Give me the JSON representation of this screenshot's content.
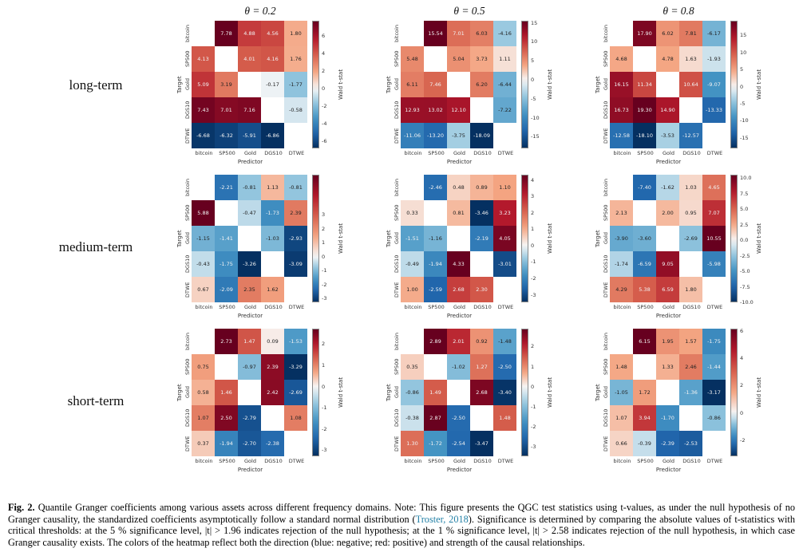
{
  "figure": {
    "row_labels": [
      "long-term",
      "medium-term",
      "short-term"
    ],
    "col_titles": [
      "θ = 0.2",
      "θ = 0.5",
      "θ = 0.8"
    ],
    "assets": [
      "bitcoin",
      "SP500",
      "Gold",
      "DGS10",
      "DTWE"
    ],
    "xlabel": "Predictor",
    "ylabel": "Target",
    "cbar_label": "Wald t-stat",
    "colors": {
      "positive_extreme": "#67001f",
      "negative_extreme": "#053061",
      "center": "#f7f7f7"
    }
  },
  "chart_data": [
    {
      "type": "heatmap",
      "term": "long-term",
      "theta": "θ = 0.2",
      "matrix": [
        [
          null,
          7.78,
          4.88,
          4.56,
          1.8
        ],
        [
          4.13,
          null,
          4.01,
          4.16,
          1.76
        ],
        [
          5.09,
          3.19,
          null,
          -0.17,
          -1.77
        ],
        [
          7.43,
          7.01,
          7.16,
          null,
          -0.58
        ],
        [
          -6.68,
          -6.32,
          -5.91,
          -6.86,
          null
        ]
      ],
      "vmin": -6.86,
      "vmax": 7.78,
      "cbar_ticks": [
        6,
        4,
        2,
        0,
        -2,
        -4,
        -6
      ],
      "tick_decimals": 0
    },
    {
      "type": "heatmap",
      "term": "long-term",
      "theta": "θ = 0.5",
      "matrix": [
        [
          null,
          15.54,
          7.01,
          6.03,
          -4.16
        ],
        [
          5.48,
          null,
          5.04,
          3.73,
          1.11
        ],
        [
          6.11,
          7.46,
          null,
          6.2,
          -6.44
        ],
        [
          12.93,
          13.02,
          12.1,
          null,
          -7.22
        ],
        [
          -11.06,
          -13.2,
          -3.75,
          -18.09,
          null
        ]
      ],
      "vmin": -18.09,
      "vmax": 15.54,
      "cbar_ticks": [
        15,
        10,
        5,
        0,
        -5,
        -10,
        -15
      ],
      "tick_decimals": 0
    },
    {
      "type": "heatmap",
      "term": "long-term",
      "theta": "θ = 0.8",
      "matrix": [
        [
          null,
          17.9,
          6.02,
          7.81,
          -6.17
        ],
        [
          4.68,
          null,
          4.78,
          1.63,
          -1.93
        ],
        [
          16.15,
          11.34,
          null,
          10.64,
          -9.07
        ],
        [
          16.73,
          19.3,
          14.9,
          null,
          -13.33
        ],
        [
          -12.58,
          -18.1,
          -3.53,
          -12.57,
          null
        ]
      ],
      "vmin": -18.1,
      "vmax": 19.3,
      "cbar_ticks": [
        15,
        10,
        5,
        0,
        -5,
        -10,
        -15
      ],
      "tick_decimals": 0
    },
    {
      "type": "heatmap",
      "term": "medium-term",
      "theta": "θ = 0.2",
      "matrix": [
        [
          null,
          -2.21,
          -0.81,
          1.13,
          -0.81
        ],
        [
          5.88,
          null,
          -0.47,
          -1.73,
          2.39
        ],
        [
          -1.15,
          -1.41,
          null,
          -1.03,
          -2.93
        ],
        [
          -0.43,
          -1.75,
          -3.26,
          null,
          -3.09
        ],
        [
          0.67,
          -2.09,
          2.35,
          1.62,
          null
        ]
      ],
      "vmin": -3.26,
      "vmax": 5.88,
      "cbar_ticks": [
        3,
        2,
        1,
        0,
        -1,
        -2,
        -3
      ],
      "tick_decimals": 0
    },
    {
      "type": "heatmap",
      "term": "medium-term",
      "theta": "θ = 0.5",
      "matrix": [
        [
          null,
          -2.46,
          0.48,
          0.89,
          1.1
        ],
        [
          0.33,
          null,
          0.81,
          -3.46,
          3.23
        ],
        [
          -1.51,
          -1.16,
          null,
          -2.19,
          4.05
        ],
        [
          -0.49,
          -1.94,
          4.33,
          null,
          -3.01
        ],
        [
          1.0,
          -2.59,
          2.68,
          2.3,
          null
        ]
      ],
      "vmin": -3.46,
      "vmax": 4.33,
      "cbar_ticks": [
        4,
        3,
        2,
        1,
        0,
        -1,
        -2,
        -3
      ],
      "tick_decimals": 0
    },
    {
      "type": "heatmap",
      "term": "medium-term",
      "theta": "θ = 0.8",
      "matrix": [
        [
          null,
          -7.4,
          -1.62,
          1.03,
          4.65
        ],
        [
          2.13,
          null,
          2.0,
          0.95,
          7.07
        ],
        [
          -3.9,
          -3.6,
          null,
          -2.69,
          10.55
        ],
        [
          -1.74,
          -6.59,
          9.05,
          null,
          -5.98
        ],
        [
          4.29,
          5.38,
          6.59,
          1.8,
          null
        ]
      ],
      "vmin": -10.0,
      "vmax": 10.55,
      "cbar_ticks": [
        10.0,
        7.5,
        5.0,
        2.5,
        0.0,
        -2.5,
        -5.0,
        -7.5,
        -10.0
      ],
      "tick_decimals": 1
    },
    {
      "type": "heatmap",
      "term": "short-term",
      "theta": "θ = 0.2",
      "matrix": [
        [
          null,
          2.73,
          1.47,
          0.09,
          -1.53
        ],
        [
          0.75,
          null,
          -0.97,
          2.39,
          -3.29
        ],
        [
          0.58,
          1.46,
          null,
          2.42,
          -2.69
        ],
        [
          1.07,
          2.5,
          -2.79,
          null,
          1.08
        ],
        [
          0.37,
          -1.94,
          -2.7,
          -2.38,
          null
        ]
      ],
      "vmin": -3.29,
      "vmax": 2.73,
      "cbar_ticks": [
        2,
        1,
        0,
        -1,
        -2,
        -3
      ],
      "tick_decimals": 0
    },
    {
      "type": "heatmap",
      "term": "short-term",
      "theta": "θ = 0.5",
      "matrix": [
        [
          null,
          2.89,
          2.01,
          0.92,
          -1.48
        ],
        [
          0.35,
          null,
          -1.02,
          1.27,
          -2.5
        ],
        [
          -0.86,
          1.49,
          null,
          2.68,
          -3.4
        ],
        [
          -0.38,
          2.87,
          -2.5,
          null,
          1.48
        ],
        [
          1.3,
          -1.72,
          -2.54,
          -3.47,
          null
        ]
      ],
      "vmin": -3.47,
      "vmax": 2.89,
      "cbar_ticks": [
        2,
        1,
        0,
        -1,
        -2,
        -3
      ],
      "tick_decimals": 0
    },
    {
      "type": "heatmap",
      "term": "short-term",
      "theta": "θ = 0.8",
      "matrix": [
        [
          null,
          6.15,
          1.95,
          1.57,
          -1.75
        ],
        [
          1.48,
          null,
          1.33,
          2.46,
          -1.44
        ],
        [
          -1.05,
          1.72,
          null,
          -1.36,
          -3.17
        ],
        [
          1.07,
          3.94,
          -1.7,
          null,
          -0.86
        ],
        [
          0.66,
          -0.39,
          -2.39,
          -2.53,
          null
        ]
      ],
      "vmin": -3.17,
      "vmax": 6.15,
      "cbar_ticks": [
        6,
        4,
        2,
        0,
        -2
      ],
      "tick_decimals": 0
    }
  ],
  "caption": {
    "label": "Fig. 2.",
    "text_before_link": " Quantile Granger coefficients among various assets across different frequency domains. Note: This figure presents the QGC test statistics using t-values, as under the null hypothesis of no Granger causality, the standardized coefficients asymptotically follow a standard normal distribution (",
    "link_text": "Troster, 2018",
    "text_after_link": "). Significance is determined by comparing the absolute values of t-statistics with critical thresholds: at the 5 % significance level, |t| > 1.96 indicates rejection of the null hypothesis; at the 1 % significance level, |t| > 2.58 indicates rejection of the null hypothesis, in which case Granger causality exists. The colors of the heatmap reflect both the direction (blue: negative; red: positive) and strength of the causal relationships."
  }
}
